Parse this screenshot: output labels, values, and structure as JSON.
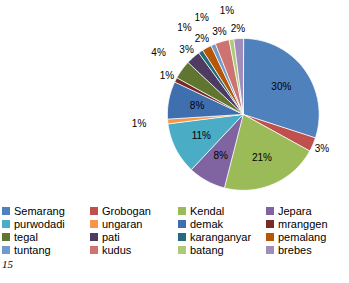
{
  "chart_data": {
    "type": "pie",
    "categories": [
      "Semarang",
      "Grobogan",
      "Kendal",
      "Jepara",
      "purwodadi",
      "ungaran",
      "demak",
      "mranggen",
      "tegal",
      "pati",
      "karanganyar",
      "pemalang",
      "tuntang",
      "kudus",
      "batang",
      "brebes"
    ],
    "values": [
      30,
      3,
      21,
      8,
      11,
      1,
      8,
      1,
      4,
      3,
      1,
      2,
      1,
      3,
      1,
      2
    ],
    "value_labels": [
      "30%",
      "3%",
      "21%",
      "8%",
      "11%",
      "1%",
      "8%",
      "1%",
      "4%",
      "3%",
      "1%",
      "2%",
      "1%",
      "3%",
      "1%",
      "2%"
    ],
    "colors": [
      "#4F81BD",
      "#C0504D",
      "#9BBB59",
      "#8064A2",
      "#4BACC6",
      "#F79646",
      "#3F6FAE",
      "#772C2A",
      "#5F7530",
      "#4D3B62",
      "#276A7C",
      "#B65708",
      "#729ACA",
      "#CD7371",
      "#AFC97A",
      "#A18CBC"
    ],
    "data_labels": true,
    "legend": "bottom",
    "caption": "15"
  }
}
